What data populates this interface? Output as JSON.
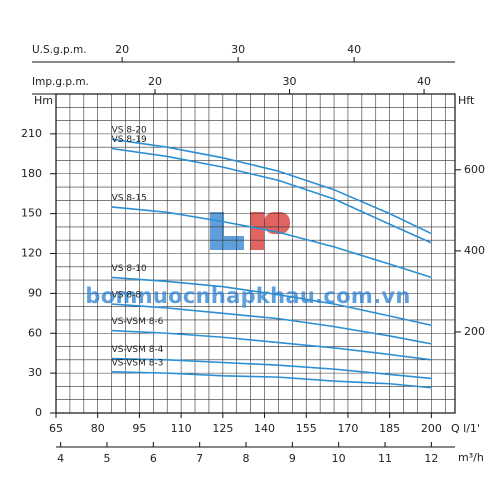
{
  "chart_data": {
    "type": "line",
    "x": [
      85,
      105,
      125,
      145,
      165,
      185,
      200
    ],
    "xlim": [
      65,
      208.5
    ],
    "xticks": [
      65,
      80,
      95,
      110,
      125,
      140,
      155,
      170,
      185,
      200
    ],
    "x_label": "Q l/1'",
    "ylim": [
      0,
      240
    ],
    "yticks": [
      0,
      30,
      60,
      90,
      120,
      150,
      180,
      210
    ],
    "y_label": "Hm",
    "y2lim": [
      0,
      787
    ],
    "y2ticks": [
      200,
      400,
      600
    ],
    "y2_label": "Hft",
    "x_axes": [
      {
        "label": "U.S.g.p.m.",
        "position": "top",
        "lim": [
          14.3,
          48.7
        ],
        "ticks": [
          20,
          30,
          40
        ]
      },
      {
        "label": "Imp.g.p.m.",
        "position": "top",
        "lim": [
          12.64,
          42.3
        ],
        "ticks": [
          20,
          30,
          40
        ]
      },
      {
        "label": "m³/h",
        "position": "bottom",
        "lim": [
          3.9,
          12.51
        ],
        "ticks": [
          4,
          5,
          6,
          7,
          8,
          9,
          10,
          11,
          12
        ]
      }
    ],
    "grid": true,
    "minor_grid": {
      "x": 5,
      "y": 10
    },
    "watermark": "bomnuocnhapkhau.com.vn",
    "series": [
      {
        "name": "VS 8-20",
        "color": "#2b8fd3",
        "values": [
          206,
          200,
          192,
          182,
          168,
          150,
          135
        ]
      },
      {
        "name": "VS 8-19",
        "color": "#2b8fd3",
        "values": [
          199,
          193,
          185,
          175,
          161,
          142,
          128
        ]
      },
      {
        "name": "VS 8-15",
        "color": "#2b8fd3",
        "values": [
          155,
          151,
          144,
          136,
          125,
          112,
          102
        ]
      },
      {
        "name": "VS 8-10",
        "color": "#2b8fd3",
        "values": [
          102,
          99,
          95,
          89,
          82,
          73,
          66
        ]
      },
      {
        "name": "VS 8-8",
        "color": "#2b8fd3",
        "values": [
          82,
          79,
          75,
          71,
          65,
          58,
          52
        ]
      },
      {
        "name": "VS-VSM 8-6",
        "color": "#2b8fd3",
        "values": [
          62,
          60,
          57,
          53,
          49,
          44,
          40
        ]
      },
      {
        "name": "VS-VSM 8-4",
        "color": "#2b8fd3",
        "values": [
          41,
          40,
          38,
          36,
          33,
          29,
          26
        ]
      },
      {
        "name": "VS-VSM 8-3",
        "color": "#2b8fd3",
        "values": [
          31,
          30,
          28,
          27,
          24,
          22,
          19
        ]
      }
    ]
  }
}
